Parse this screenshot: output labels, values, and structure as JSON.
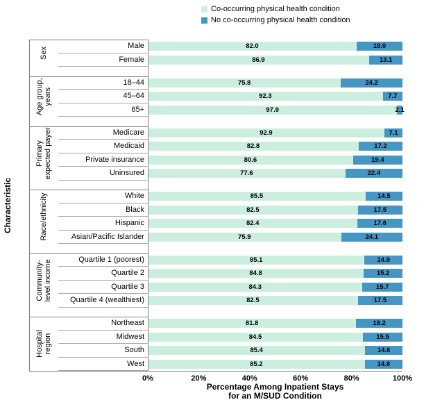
{
  "legend": {
    "items": [
      {
        "label": "Co-occurring physical health condition",
        "color": "#CBEEDF"
      },
      {
        "label": "No co-occurring physical health condition",
        "color": "#4596C3"
      }
    ]
  },
  "axes": {
    "y_title": "Characteristic",
    "x_title_line1": "Percentage Among Inpatient Stays",
    "x_title_line2": "for an M/SUD Condition"
  },
  "chart_data": {
    "type": "bar",
    "orientation": "horizontal",
    "stacked": true,
    "xlim": [
      0,
      100
    ],
    "grid": false,
    "legend_position": "top",
    "xlabel": "Percentage Among Inpatient Stays for an M/SUD Condition",
    "ylabel": "Characteristic",
    "x_tick_labels": [
      "0%",
      "20%",
      "40%",
      "60%",
      "80%",
      "100%"
    ],
    "series_names": [
      "Co-occurring physical health condition",
      "No co-occurring physical health condition"
    ],
    "colors": {
      "co_occurring": "#CBEEDF",
      "no_co_occurring": "#4596C3",
      "axis_line": "#808080",
      "row_line": "#A6A6A6",
      "value_text": "#000000"
    },
    "groups": [
      {
        "label": "Sex",
        "rows": [
          {
            "category": "Male",
            "values": [
              82.0,
              18.0
            ]
          },
          {
            "category": "Female",
            "values": [
              86.9,
              13.1
            ]
          }
        ]
      },
      {
        "label": "Age group,\nyears",
        "rows": [
          {
            "category": "18–44",
            "values": [
              75.8,
              24.2
            ]
          },
          {
            "category": "45–64",
            "values": [
              92.3,
              7.7
            ]
          },
          {
            "category": "65+",
            "values": [
              97.9,
              2.1
            ]
          }
        ]
      },
      {
        "label": "Primary\nexpected payer",
        "rows": [
          {
            "category": "Medicare",
            "values": [
              92.9,
              7.1
            ]
          },
          {
            "category": "Medicaid",
            "values": [
              82.8,
              17.2
            ]
          },
          {
            "category": "Private insurance",
            "values": [
              80.6,
              19.4
            ]
          },
          {
            "category": "Uninsured",
            "values": [
              77.6,
              22.4
            ]
          }
        ]
      },
      {
        "label": "Race/ethnicity",
        "rows": [
          {
            "category": "White",
            "values": [
              85.5,
              14.5
            ]
          },
          {
            "category": "Black",
            "values": [
              82.5,
              17.5
            ]
          },
          {
            "category": "Hispanic",
            "values": [
              82.4,
              17.6
            ]
          },
          {
            "category": "Asian/Pacific Islander",
            "values": [
              75.9,
              24.1
            ]
          }
        ]
      },
      {
        "label": "Community-\nlevel income",
        "rows": [
          {
            "category": "Quartile 1 (poorest)",
            "values": [
              85.1,
              14.9
            ]
          },
          {
            "category": "Quartile 2",
            "values": [
              84.8,
              15.2
            ]
          },
          {
            "category": "Quartile 3",
            "values": [
              84.3,
              15.7
            ]
          },
          {
            "category": "Quartile 4 (wealthiest)",
            "values": [
              82.5,
              17.5
            ]
          }
        ]
      },
      {
        "label": "Hospital\nregion",
        "rows": [
          {
            "category": "Northeast",
            "values": [
              81.8,
              18.2
            ]
          },
          {
            "category": "Midwest",
            "values": [
              84.5,
              15.5
            ]
          },
          {
            "category": "South",
            "values": [
              85.4,
              14.6
            ]
          },
          {
            "category": "West",
            "values": [
              85.2,
              14.8
            ]
          }
        ]
      }
    ]
  }
}
